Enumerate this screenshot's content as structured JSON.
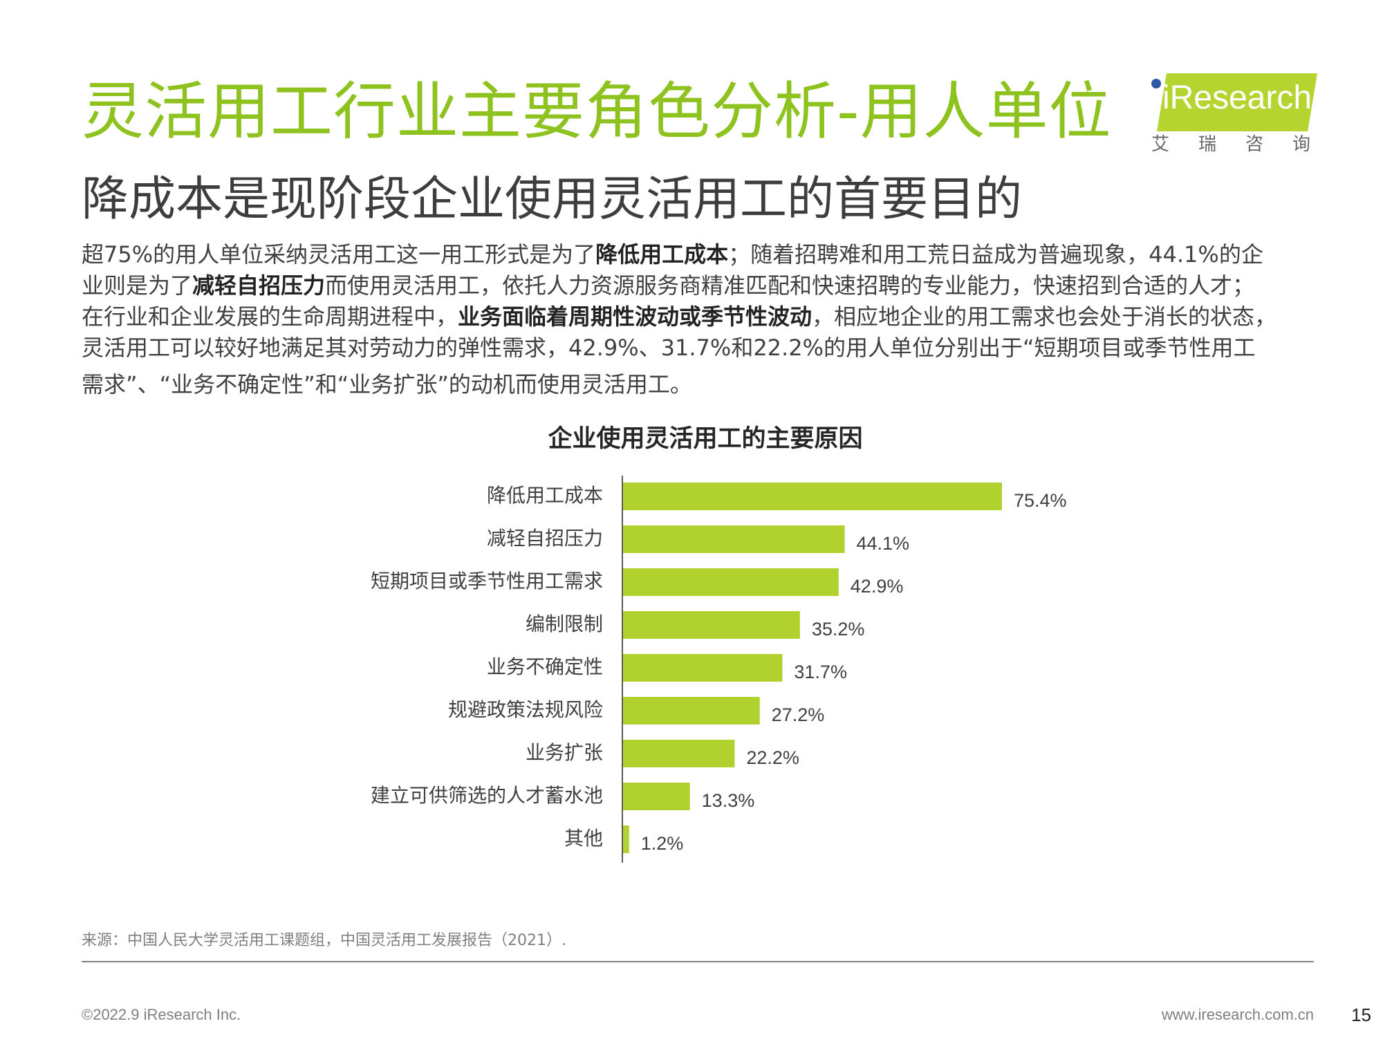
{
  "header": {
    "title": "灵活用工行业主要角色分析-用人单位",
    "subtitle": "降成本是现阶段企业使用灵活用工的首要目的",
    "logo": {
      "word": "iResearch",
      "cn": "艾瑞咨询"
    }
  },
  "paragraph": {
    "l1a": "超75%的用人单位采纳灵活用工这一用工形式是为了",
    "l1b": "降低用工成本",
    "l1c": "；随着招聘难和用工荒日益成为普遍现象，44.1%的企",
    "l2a": "业则是为了",
    "l2b": "减轻自招压力",
    "l2c": "而使用灵活用工，依托人力资源服务商精准匹配和快速招聘的专业能力，快速招到合适的人才；",
    "l3a": "在行业和企业发展的生命周期进程中，",
    "l3b": "业务面临着周期性波动或季节性波动",
    "l3c": "，相应地企业的用工需求也会处于消长的状态，",
    "l4": "灵活用工可以较好地满足其对劳动力的弹性需求，42.9%、31.7%和22.2%的用人单位分别出于“短期项目或季节性用工",
    "l5": "需求”、“业务不确定性”和“业务扩张”的动机而使用灵活用工。"
  },
  "chart_data": {
    "type": "bar",
    "orientation": "horizontal",
    "title": "企业使用灵活用工的主要原因",
    "categories": [
      "降低用工成本",
      "减轻自招压力",
      "短期项目或季节性用工需求",
      "编制限制",
      "业务不确定性",
      "规避政策法规风险",
      "业务扩张",
      "建立可供筛选的人才蓄水池",
      "其他"
    ],
    "values": [
      75.4,
      44.1,
      42.9,
      35.2,
      31.7,
      27.2,
      22.2,
      13.3,
      1.2
    ],
    "value_labels": [
      "75.4%",
      "44.1%",
      "42.9%",
      "35.2%",
      "31.7%",
      "27.2%",
      "22.2%",
      "13.3%",
      "1.2%"
    ],
    "unit": "%",
    "xlim": [
      0,
      100
    ],
    "grid": false,
    "bar_color": "#b0d12e"
  },
  "footer": {
    "source": "来源：中国人民大学灵活用工课题组，中国灵活用工发展报告（2021）.",
    "copyright": "©2022.9 iResearch Inc.",
    "website": "www.iresearch.com.cn",
    "page": "15"
  }
}
